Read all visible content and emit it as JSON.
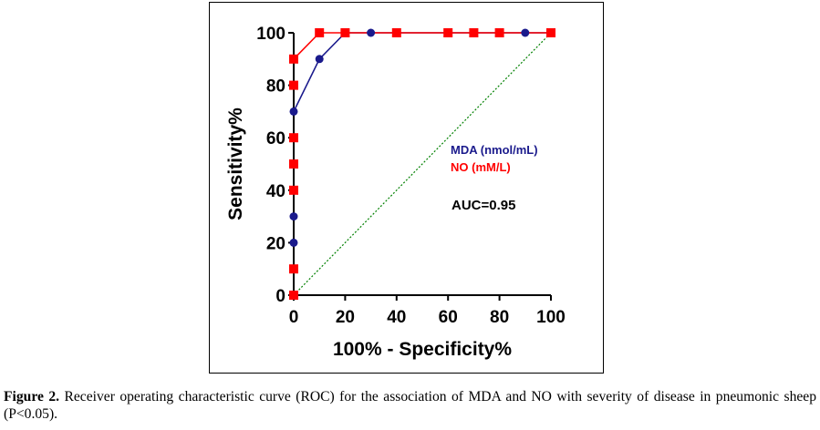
{
  "chart_data": {
    "type": "line",
    "xlabel": "100% - Specificity%",
    "ylabel": "Sensitivity%",
    "xlim": [
      0,
      100
    ],
    "ylim": [
      0,
      100
    ],
    "xticks": [
      "0",
      "20",
      "40",
      "60",
      "80",
      "100"
    ],
    "yticks": [
      "0",
      "20",
      "40",
      "60",
      "80",
      "100"
    ],
    "grid": false,
    "legend_position": "right",
    "series": [
      {
        "name": "MDA (nmol/mL)",
        "color": "#1a1a8c",
        "marker": "circle",
        "x": [
          0,
          0,
          0,
          0,
          10,
          20,
          30,
          90,
          100
        ],
        "y": [
          0,
          20,
          30,
          70,
          90,
          100,
          100,
          100,
          100
        ]
      },
      {
        "name": "NO (mM/L)",
        "color": "#ff0000",
        "marker": "square",
        "x": [
          0,
          0,
          0,
          0,
          0,
          0,
          0,
          10,
          20,
          40,
          60,
          70,
          80,
          100
        ],
        "y": [
          0,
          10,
          40,
          50,
          60,
          80,
          90,
          100,
          100,
          100,
          100,
          100,
          100,
          100
        ]
      }
    ],
    "reference_line": {
      "x": [
        0,
        100
      ],
      "y": [
        0,
        100
      ],
      "color": "#008000",
      "style": "dotted"
    },
    "annotations": [
      "AUC=0.95"
    ]
  },
  "caption": {
    "label": "Figure 2.",
    "text": "Receiver operating characteristic curve (ROC) for the association of MDA and NO with severity of disease in pneumonic sheep (P<0.05)."
  }
}
